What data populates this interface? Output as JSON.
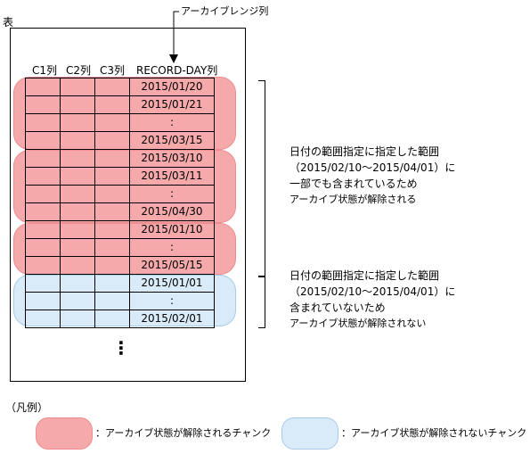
{
  "table_label": "表",
  "archive_range_column_label": "アーカイブレンジ列",
  "columns": [
    "C1列",
    "C2列",
    "C3列",
    "RECORD-DAY列"
  ],
  "rows": [
    "2015/01/20",
    "2015/01/21",
    ":",
    "2015/03/15",
    "2015/03/10",
    "2015/03/11",
    ":",
    "2015/04/30",
    "2015/01/10",
    ":",
    "2015/05/15",
    "2015/01/01",
    ":",
    "2015/02/01"
  ],
  "more_rows": "⋮",
  "annotation_released": [
    "日付の範囲指定に指定した範囲",
    "（2015/02/10～2015/04/01）に",
    "一部でも含まれているため",
    "アーカイブ状態が解除される"
  ],
  "annotation_not_released": [
    "日付の範囲指定に指定した範囲",
    "（2015/02/10～2015/04/01）に",
    "含まれていないため",
    "アーカイブ状態が解除されない"
  ],
  "legend_title": "（凡例）",
  "legend_released": "：アーカイブ状態が解除されるチャンク",
  "legend_not_released": "：アーカイブ状態が解除されないチャンク",
  "colors": {
    "released_chunk": "#f5a9aa",
    "not_released_chunk": "#d9eaf8"
  }
}
